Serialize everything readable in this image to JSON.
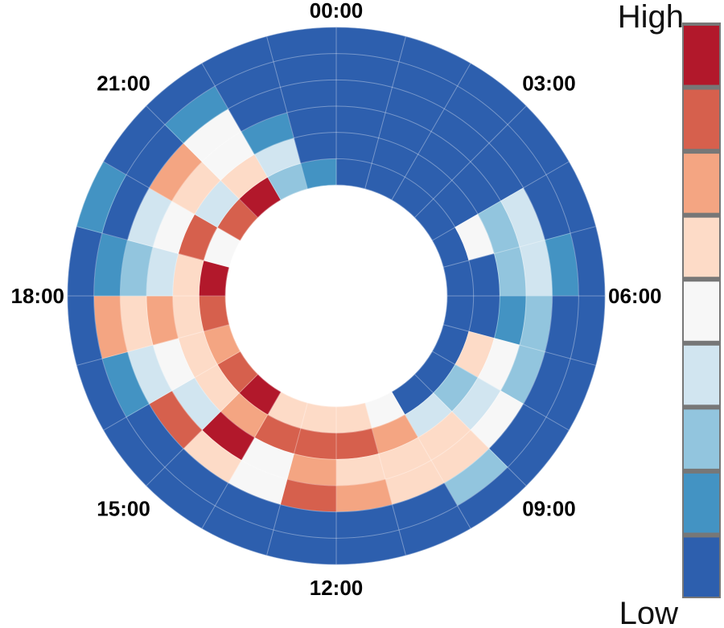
{
  "chart_data": {
    "type": "heatmap",
    "layout": "polar-radial",
    "title": "",
    "angular_tick_labels": [
      "00:00",
      "03:00",
      "06:00",
      "09:00",
      "12:00",
      "15:00",
      "18:00",
      "21:00"
    ],
    "colorbar": {
      "high_label": "High",
      "low_label": "Low",
      "colors": [
        "#b2182b",
        "#d6604d",
        "#f4a582",
        "#fddbc7",
        "#f7f7f7",
        "#d1e5f0",
        "#92c5de",
        "#4393c3",
        "#2d5fae"
      ]
    },
    "scale": {
      "levels": 9,
      "min_level": 0,
      "max_level": 8,
      "note_levels": "0 = Low (darkest blue) ... 8 = High (dark red)"
    },
    "sectors": 24,
    "sector_hours": [
      "00:00",
      "01:00",
      "02:00",
      "03:00",
      "04:00",
      "05:00",
      "06:00",
      "07:00",
      "08:00",
      "09:00",
      "10:00",
      "11:00",
      "12:00",
      "13:00",
      "14:00",
      "15:00",
      "16:00",
      "17:00",
      "18:00",
      "19:00",
      "20:00",
      "21:00",
      "22:00",
      "23:00"
    ],
    "rings": [
      {
        "index": 1,
        "values": [
          0,
          0,
          0,
          0,
          0,
          0,
          0,
          0,
          0,
          0,
          4,
          5,
          5,
          5,
          8,
          7,
          6,
          7,
          8,
          4,
          7,
          8,
          2,
          1
        ]
      },
      {
        "index": 2,
        "values": [
          0,
          0,
          0,
          0,
          4,
          0,
          0,
          5,
          2,
          3,
          6,
          7,
          7,
          7,
          6,
          5,
          5,
          5,
          5,
          7,
          3,
          5,
          3,
          0
        ]
      },
      {
        "index": 3,
        "values": [
          0,
          0,
          0,
          0,
          2,
          2,
          1,
          4,
          3,
          5,
          5,
          5,
          6,
          4,
          8,
          3,
          4,
          6,
          3,
          4,
          5,
          4,
          1,
          0
        ]
      },
      {
        "index": 4,
        "values": [
          0,
          0,
          0,
          0,
          3,
          3,
          2,
          2,
          4,
          5,
          5,
          6,
          7,
          4,
          5,
          7,
          3,
          5,
          2,
          3,
          6,
          4,
          0,
          0
        ]
      },
      {
        "index": 5,
        "values": [
          0,
          0,
          0,
          0,
          0,
          1,
          0,
          0,
          0,
          2,
          0,
          0,
          0,
          0,
          0,
          0,
          1,
          6,
          1,
          0,
          0,
          1,
          0,
          0
        ]
      },
      {
        "index": 6,
        "values": [
          0,
          0,
          0,
          0,
          0,
          0,
          0,
          0,
          0,
          0,
          0,
          0,
          0,
          0,
          0,
          0,
          0,
          0,
          0,
          1,
          0,
          0,
          0,
          0
        ]
      }
    ]
  }
}
